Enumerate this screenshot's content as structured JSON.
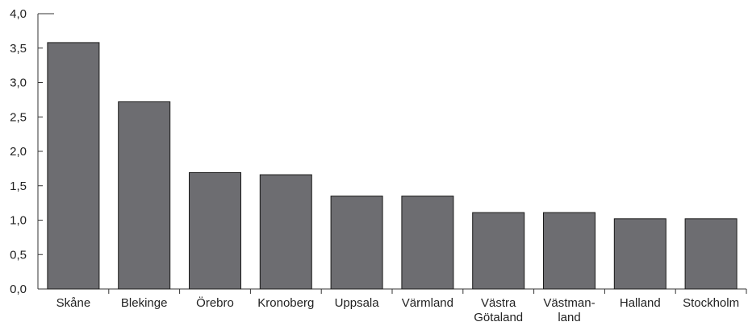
{
  "chart_data": {
    "type": "bar",
    "title": "",
    "xlabel": "",
    "ylabel": "",
    "ylim": [
      0,
      4
    ],
    "yticks": [
      "0,0",
      "0,5",
      "1,0",
      "1,5",
      "2,0",
      "2,5",
      "3,0",
      "3,5",
      "4,0"
    ],
    "ytick_values": [
      0,
      0.5,
      1.0,
      1.5,
      2.0,
      2.5,
      3.0,
      3.5,
      4.0
    ],
    "categories": [
      [
        "Skåne"
      ],
      [
        "Blekinge"
      ],
      [
        "Örebro"
      ],
      [
        "Kronoberg"
      ],
      [
        "Uppsala"
      ],
      [
        "Värmland"
      ],
      [
        "Västra",
        "Götaland"
      ],
      [
        "Västman-",
        "land"
      ],
      [
        "Halland"
      ],
      [
        "Stockholm"
      ]
    ],
    "values": [
      3.58,
      2.72,
      1.69,
      1.66,
      1.35,
      1.35,
      1.11,
      1.11,
      1.02,
      1.02
    ],
    "grid": false,
    "colors": {
      "bar": "#6d6d71",
      "bar_stroke": "#1a1a1a",
      "axis": "#333333"
    }
  }
}
